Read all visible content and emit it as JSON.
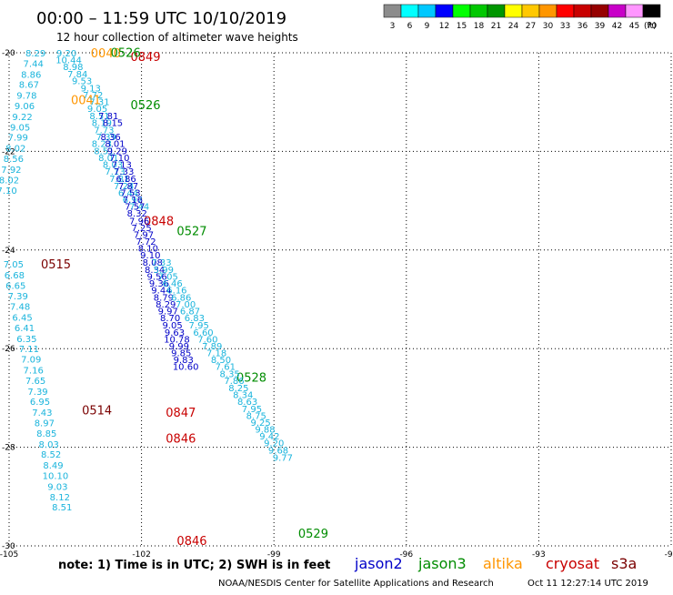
{
  "header": {
    "title": "00:00 – 11:59 UTC 10/10/2019",
    "subtitle": "12 hour collection of altimeter wave heights"
  },
  "colorbar": {
    "colors": [
      "#8c8c8c",
      "#00ffff",
      "#00c8ff",
      "#0000ff",
      "#00ff00",
      "#00c800",
      "#009600",
      "#ffff00",
      "#ffc800",
      "#ff9600",
      "#ff0000",
      "#c80000",
      "#960000",
      "#c800c8",
      "#ff96ff",
      "#000000"
    ],
    "labels": [
      "3",
      "6",
      "9",
      "12",
      "15",
      "18",
      "21",
      "24",
      "27",
      "30",
      "33",
      "36",
      "39",
      "42",
      "45",
      "70"
    ],
    "unit": "(ft)"
  },
  "footer": {
    "note": "note:  1) Time is in UTC; 2) SWH is in feet",
    "credit": "NOAA/NESDIS Center for Satellite Applications and Research",
    "timestamp": "Oct 11 12:27:14 UTC 2019",
    "legend": [
      {
        "name": "jason2",
        "color": "#0000c8"
      },
      {
        "name": "jason3",
        "color": "#008c00"
      },
      {
        "name": "altika",
        "color": "#ff9600"
      },
      {
        "name": "cryosat",
        "color": "#c80000"
      },
      {
        "name": "s3a",
        "color": "#7a0000"
      }
    ]
  },
  "chart_data": {
    "type": "scatter",
    "xlim": [
      -105,
      -90
    ],
    "ylim": [
      -30,
      -20
    ],
    "x_ticks": [
      -105,
      -102,
      -99,
      -96,
      -93,
      -90
    ],
    "y_ticks": [
      -20,
      -22,
      -24,
      -26,
      -28,
      -30
    ],
    "x_tick_labels": [
      "-105",
      "-102",
      "-99",
      "-96",
      "-93",
      "-90"
    ],
    "y_tick_labels": [
      "-20",
      "-22",
      "-24",
      "-26",
      "-28",
      "-30"
    ],
    "grid": true,
    "tracks": [
      {
        "name": "s3a 0515",
        "color": "#1ab4dc",
        "label": "0515",
        "label_color": "#7a0000",
        "label_pos": [
          -104.28,
          -24.28
        ],
        "points": [
          [
            -104.4,
            -20.0,
            "8.29"
          ],
          [
            -104.45,
            -20.21,
            "7.44"
          ],
          [
            -104.5,
            -20.43,
            "8.86"
          ],
          [
            -104.55,
            -20.64,
            "8.67"
          ],
          [
            -104.6,
            -20.86,
            "9.78"
          ],
          [
            -104.65,
            -21.07,
            "9.06"
          ],
          [
            -104.7,
            -21.29,
            "9.22"
          ],
          [
            -104.75,
            -21.5,
            "9.05"
          ],
          [
            -104.8,
            -21.71,
            "7.99"
          ],
          [
            -104.85,
            -21.93,
            "8.02"
          ],
          [
            -104.9,
            -22.14,
            "8.56"
          ],
          [
            -104.95,
            -22.36,
            "7.92"
          ],
          [
            -105.0,
            -22.57,
            "8.02"
          ],
          [
            -105.05,
            -22.79,
            "7.10"
          ],
          [
            -104.9,
            -24.28,
            "7.05"
          ],
          [
            -104.88,
            -24.5,
            "6.68"
          ],
          [
            -104.85,
            -24.71,
            "6.65"
          ],
          [
            -104.8,
            -24.93,
            "7.39"
          ],
          [
            -104.75,
            -25.14,
            "7.48"
          ],
          [
            -104.7,
            -25.36,
            "6.45"
          ],
          [
            -104.65,
            -25.57,
            "6.41"
          ],
          [
            -104.6,
            -25.79,
            "6.35"
          ],
          [
            -104.55,
            -26.0,
            "7.11"
          ],
          [
            -104.5,
            -26.21,
            "7.09"
          ],
          [
            -104.45,
            -26.43,
            "7.16"
          ],
          [
            -104.4,
            -26.64,
            "7.65"
          ],
          [
            -104.35,
            -26.86,
            "7.39"
          ],
          [
            -104.3,
            -27.07,
            "6.95"
          ],
          [
            -104.25,
            -27.29,
            "7.43"
          ],
          [
            -104.2,
            -27.5,
            "8.97"
          ],
          [
            -104.15,
            -27.71,
            "8.85"
          ],
          [
            -104.1,
            -27.93,
            "8.03"
          ],
          [
            -104.05,
            -28.14,
            "8.52"
          ],
          [
            -104.0,
            -28.36,
            "8.49"
          ],
          [
            -103.95,
            -28.57,
            "10.10"
          ],
          [
            -103.9,
            -28.79,
            "9.03"
          ],
          [
            -103.85,
            -29.0,
            "8.12"
          ],
          [
            -103.8,
            -29.21,
            "8.51"
          ]
        ]
      },
      {
        "name": "s3a 0514",
        "color": "#1ab4dc",
        "label": "0514",
        "label_color": "#7a0000",
        "label_pos": [
          -103.35,
          -27.24
        ],
        "points": []
      },
      {
        "name": "altika 0040",
        "color": "#ff9600",
        "label": "0040",
        "label_color": "#ff9600",
        "label_pos": [
          -103.15,
          -20.0
        ],
        "points": []
      },
      {
        "name": "altika 0041",
        "color": "#ff9600",
        "label": "0041",
        "label_color": "#ff9600",
        "label_pos": [
          -103.6,
          -20.95
        ],
        "points": []
      },
      {
        "name": "jason2 0849",
        "color": "#0000c8",
        "label": "0849",
        "label_color": "#c80000",
        "label_pos": [
          -102.25,
          -20.07
        ],
        "points": []
      },
      {
        "name": "jason3 0526",
        "color": "#008c00",
        "label": "0526",
        "label_color": "#008c00",
        "label_pos": [
          -102.7,
          -19.99
        ],
        "points": []
      },
      {
        "name": "jason3 0526b",
        "color": "#008c00",
        "label": "0526",
        "label_color": "#008c00",
        "label_pos": [
          -102.25,
          -21.05
        ],
        "points": []
      },
      {
        "name": "mid",
        "color": "#1ab4dc",
        "label": "",
        "label_color": "#000",
        "label_pos": [
          0,
          0
        ],
        "points": [
          [
            -103.7,
            -20.0,
            "9.20"
          ],
          [
            -103.65,
            -20.14,
            "10.44"
          ],
          [
            -103.55,
            -20.28,
            "8.98"
          ],
          [
            -103.45,
            -20.42,
            "7.84"
          ],
          [
            -103.35,
            -20.56,
            "9.53"
          ],
          [
            -103.15,
            -20.71,
            "9.13"
          ],
          [
            -103.1,
            -20.85,
            "7.72"
          ],
          [
            -102.95,
            -20.99,
            "7.31"
          ],
          [
            -103.0,
            -21.13,
            "9.05"
          ],
          [
            -102.95,
            -21.27,
            "8.51"
          ],
          [
            -102.9,
            -21.41,
            "8.19"
          ],
          [
            -102.85,
            -21.56,
            "7.73"
          ],
          [
            -102.8,
            -21.7,
            "7.39"
          ],
          [
            -102.9,
            -21.84,
            "8.23"
          ],
          [
            -102.85,
            -21.98,
            "8.51"
          ],
          [
            -102.75,
            -22.12,
            "8.01"
          ],
          [
            -102.65,
            -22.26,
            "8.03"
          ],
          [
            -102.6,
            -22.4,
            "7.13"
          ],
          [
            -102.5,
            -22.55,
            "7.81"
          ],
          [
            -102.4,
            -22.69,
            "7.24"
          ],
          [
            -102.3,
            -22.83,
            "6.44"
          ],
          [
            -102.2,
            -22.97,
            "6.97"
          ],
          [
            -102.05,
            -23.11,
            "7.44"
          ]
        ]
      },
      {
        "name": "jason3 0527",
        "color": "#008c00",
        "label": "0527",
        "label_color": "#008c00",
        "label_pos": [
          -101.2,
          -23.61
        ],
        "points": []
      },
      {
        "name": "cryosat 0848",
        "color": "#c80000",
        "label": "0848",
        "label_color": "#c80000",
        "label_pos": [
          -101.95,
          -23.4
        ],
        "points": []
      },
      {
        "name": "jason2 lower",
        "color": "#0000c8",
        "label": "",
        "label_color": "#000",
        "label_pos": [
          0,
          0
        ],
        "points": [
          [
            -102.75,
            -21.27,
            "7.81"
          ],
          [
            -102.65,
            -21.41,
            "8.15"
          ],
          [
            -102.7,
            -21.7,
            "8.36"
          ],
          [
            -102.6,
            -21.84,
            "8.01"
          ],
          [
            -102.55,
            -21.98,
            "9.29"
          ],
          [
            -102.5,
            -22.12,
            "7.10"
          ],
          [
            -102.45,
            -22.26,
            "7.13"
          ],
          [
            -102.4,
            -22.4,
            "7.33"
          ],
          [
            -102.35,
            -22.55,
            "6.86"
          ],
          [
            -102.3,
            -22.69,
            "7.87"
          ],
          [
            -102.25,
            -22.83,
            "7.53"
          ],
          [
            -102.2,
            -22.97,
            "7.16"
          ],
          [
            -102.15,
            -23.11,
            "7.57"
          ],
          [
            -102.1,
            -23.25,
            "8.32"
          ],
          [
            -102.05,
            -23.4,
            "7.96"
          ],
          [
            -102.0,
            -23.54,
            "7.25"
          ],
          [
            -101.95,
            -23.68,
            "7.97"
          ],
          [
            -101.9,
            -23.82,
            "7.72"
          ],
          [
            -101.85,
            -23.96,
            "8.10"
          ],
          [
            -101.8,
            -24.1,
            "9.10"
          ],
          [
            -101.75,
            -24.24,
            "8.08"
          ],
          [
            -101.7,
            -24.39,
            "8.34"
          ],
          [
            -101.65,
            -24.53,
            "9.56"
          ],
          [
            -101.6,
            -24.67,
            "9.36"
          ],
          [
            -101.55,
            -24.81,
            "9.44"
          ],
          [
            -101.5,
            -24.95,
            "8.79"
          ],
          [
            -101.45,
            -25.09,
            "8.29"
          ],
          [
            -101.4,
            -25.23,
            "9.97"
          ],
          [
            -101.35,
            -25.37,
            "8.70"
          ],
          [
            -101.3,
            -25.52,
            "9.05"
          ],
          [
            -101.25,
            -25.66,
            "9.63"
          ],
          [
            -101.2,
            -25.8,
            "10.78"
          ],
          [
            -101.15,
            -25.94,
            "9.99"
          ],
          [
            -101.1,
            -26.08,
            "9.85"
          ],
          [
            -101.05,
            -26.22,
            "9.83"
          ],
          [
            -101.0,
            -26.36,
            "10.60"
          ]
        ]
      },
      {
        "name": "cryosat 0847",
        "color": "#c80000",
        "label": "0847",
        "label_color": "#c80000",
        "label_pos": [
          -101.45,
          -27.29
        ],
        "points": []
      },
      {
        "name": "cryosat 0846",
        "color": "#c80000",
        "label": "0846",
        "label_color": "#c80000",
        "label_pos": [
          -101.45,
          -27.81
        ],
        "points": []
      },
      {
        "name": "cryosat 0846b",
        "color": "#c80000",
        "label": "0846",
        "label_color": "#c80000",
        "label_pos": [
          -101.2,
          -29.89
        ],
        "points": []
      },
      {
        "name": "jason3 0528",
        "color": "#008c00",
        "label": "0528",
        "label_color": "#008c00",
        "label_pos": [
          -99.85,
          -26.58
        ],
        "points": []
      },
      {
        "name": "jason3 0529",
        "color": "#008c00",
        "label": "0529",
        "label_color": "#008c00",
        "label_pos": [
          -98.45,
          -29.74
        ],
        "points": []
      },
      {
        "name": "right track",
        "color": "#1ab4dc",
        "label": "",
        "label_color": "#000",
        "label_pos": [
          0,
          0
        ],
        "points": [
          [
            -101.55,
            -24.24,
            "7.33"
          ],
          [
            -101.5,
            -24.39,
            "5.99"
          ],
          [
            -101.4,
            -24.53,
            "7.05"
          ],
          [
            -101.3,
            -24.67,
            "6.46"
          ],
          [
            -101.2,
            -24.81,
            "6.16"
          ],
          [
            -101.1,
            -24.95,
            "6.86"
          ],
          [
            -101.0,
            -25.09,
            "7.00"
          ],
          [
            -100.9,
            -25.23,
            "6.87"
          ],
          [
            -100.8,
            -25.37,
            "6.83"
          ],
          [
            -100.7,
            -25.52,
            "7.95"
          ],
          [
            -100.6,
            -25.66,
            "6.60"
          ],
          [
            -100.5,
            -25.8,
            "7.60"
          ],
          [
            -100.4,
            -25.94,
            "7.89"
          ],
          [
            -100.3,
            -26.08,
            "7.18"
          ],
          [
            -100.2,
            -26.22,
            "8.50"
          ],
          [
            -100.1,
            -26.36,
            "7.61"
          ],
          [
            -100.0,
            -26.5,
            "8.35"
          ],
          [
            -99.9,
            -26.64,
            "7.86"
          ],
          [
            -99.8,
            -26.79,
            "8.25"
          ],
          [
            -99.7,
            -26.93,
            "8.34"
          ],
          [
            -99.6,
            -27.07,
            "8.63"
          ],
          [
            -99.5,
            -27.21,
            "7.95"
          ],
          [
            -99.4,
            -27.35,
            "8.75"
          ],
          [
            -99.3,
            -27.49,
            "9.25"
          ],
          [
            -99.2,
            -27.63,
            "9.88"
          ],
          [
            -99.1,
            -27.77,
            "9.42"
          ],
          [
            -99.0,
            -27.91,
            "9.20"
          ],
          [
            -98.9,
            -28.05,
            "9.68"
          ],
          [
            -98.8,
            -28.2,
            "9.77"
          ]
        ]
      }
    ]
  }
}
